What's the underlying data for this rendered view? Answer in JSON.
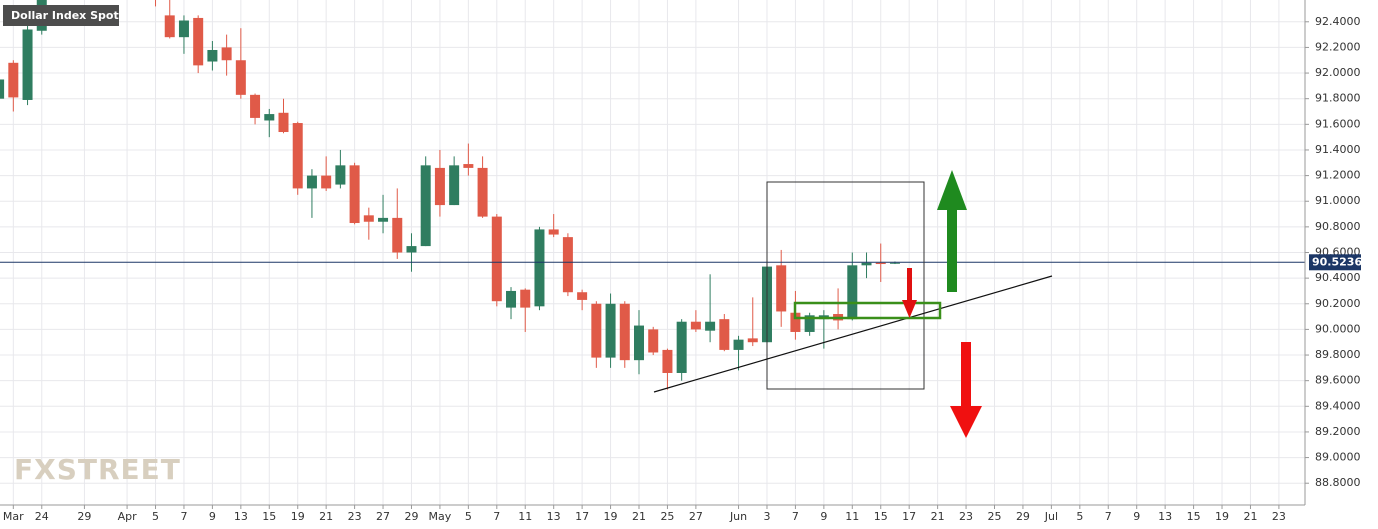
{
  "chart_data": {
    "type": "candlestick",
    "title": "Dollar Index Spot",
    "watermark": "FXSTREET",
    "categories": [
      null,
      "Mar",
      null,
      "24",
      null,
      null,
      "29",
      null,
      null,
      "Apr",
      null,
      "5",
      null,
      "7",
      null,
      "9",
      null,
      "13",
      null,
      "15",
      null,
      "19",
      null,
      "21",
      null,
      "23",
      null,
      "27",
      null,
      "29",
      null,
      "May",
      null,
      "5",
      null,
      "7",
      null,
      "11",
      null,
      "13",
      null,
      "17",
      null,
      "19",
      null,
      "21",
      null,
      "25",
      null,
      "27",
      null,
      null,
      "Jun",
      null,
      "3",
      null,
      "7",
      null,
      "9",
      null,
      "11",
      null,
      "15",
      null,
      "17",
      null,
      "21",
      null,
      "23",
      null,
      "25",
      null,
      "29",
      null,
      "Jul",
      null,
      "5",
      null,
      "7",
      null,
      "9",
      null,
      "13",
      null,
      "15",
      null,
      "19",
      null,
      "21",
      null,
      "23"
    ],
    "open": [
      91.8,
      92.08,
      91.79,
      92.33,
      null,
      null,
      null,
      null,
      null,
      null,
      null,
      92.8,
      92.45,
      92.28,
      92.43,
      92.09,
      92.2,
      92.1,
      91.83,
      91.63,
      91.69,
      91.61,
      91.1,
      91.2,
      91.13,
      91.28,
      90.89,
      90.84,
      90.87,
      90.6,
      90.65,
      91.26,
      90.97,
      91.29,
      91.26,
      90.88,
      90.17,
      90.31,
      90.18,
      90.78,
      90.72,
      90.29,
      90.2,
      89.78,
      90.2,
      89.76,
      90.0,
      89.84,
      89.66,
      90.06,
      89.99,
      90.08,
      89.84,
      89.93,
      89.9,
      90.5,
      90.13,
      89.98,
      90.08,
      90.12,
      90.08,
      90.5,
      90.52,
      90.52,
      null,
      null,
      null,
      null,
      null,
      null,
      null,
      null,
      null,
      null,
      null,
      null,
      null,
      null,
      null,
      null,
      null,
      null,
      null,
      null,
      null,
      null,
      null,
      null,
      null,
      null,
      null
    ],
    "high": [
      92.05,
      92.1,
      92.5,
      92.6,
      null,
      null,
      null,
      null,
      null,
      null,
      null,
      92.9,
      92.57,
      92.45,
      92.45,
      92.25,
      92.3,
      92.35,
      91.84,
      91.72,
      91.8,
      91.62,
      91.25,
      91.35,
      91.4,
      91.3,
      90.95,
      91.05,
      91.1,
      90.75,
      91.35,
      91.4,
      91.35,
      91.45,
      91.35,
      90.9,
      90.33,
      90.32,
      90.8,
      90.9,
      90.75,
      90.31,
      90.22,
      90.28,
      90.22,
      90.15,
      90.02,
      89.85,
      90.08,
      90.15,
      90.43,
      90.12,
      89.95,
      90.25,
      90.53,
      90.62,
      90.3,
      90.13,
      90.15,
      90.32,
      90.6,
      90.6,
      90.67,
      90.53,
      null,
      null,
      null,
      null,
      null,
      null,
      null,
      null,
      null,
      null,
      null,
      null,
      null,
      null,
      null,
      null,
      null,
      null,
      null,
      null,
      null,
      null,
      null,
      null,
      null,
      null,
      null
    ],
    "low": [
      91.65,
      91.7,
      91.75,
      92.3,
      null,
      null,
      null,
      null,
      null,
      null,
      null,
      92.52,
      92.27,
      92.15,
      92.0,
      92.02,
      91.98,
      91.8,
      91.6,
      91.5,
      91.53,
      91.05,
      90.87,
      91.08,
      91.1,
      90.82,
      90.7,
      90.75,
      90.55,
      90.45,
      90.65,
      90.88,
      90.97,
      91.2,
      90.87,
      90.18,
      90.08,
      89.98,
      90.15,
      90.72,
      90.26,
      90.15,
      89.7,
      89.7,
      89.7,
      89.65,
      89.8,
      89.53,
      89.6,
      89.98,
      89.9,
      89.83,
      89.68,
      89.87,
      89.88,
      90.02,
      89.92,
      89.95,
      89.85,
      90.0,
      90.07,
      90.4,
      90.37,
      90.51,
      null,
      null,
      null,
      null,
      null,
      null,
      null,
      null,
      null,
      null,
      null,
      null,
      null,
      null,
      null,
      null,
      null,
      null,
      null,
      null,
      null,
      null,
      null,
      null,
      null,
      null,
      null
    ],
    "close": [
      91.95,
      91.81,
      92.34,
      92.57,
      null,
      null,
      null,
      null,
      null,
      null,
      null,
      92.62,
      92.28,
      92.41,
      92.06,
      92.18,
      92.1,
      91.83,
      91.65,
      91.68,
      91.54,
      91.1,
      91.2,
      91.1,
      91.28,
      90.83,
      90.84,
      90.87,
      90.6,
      90.65,
      91.28,
      90.97,
      91.28,
      91.26,
      90.88,
      90.22,
      90.3,
      90.17,
      90.78,
      90.74,
      90.29,
      90.23,
      89.78,
      90.2,
      89.76,
      90.03,
      89.82,
      89.66,
      90.06,
      90.0,
      90.06,
      89.84,
      89.92,
      89.9,
      90.49,
      90.14,
      89.98,
      90.11,
      90.11,
      90.07,
      90.5,
      90.52,
      90.51,
      90.52,
      null,
      null,
      null,
      null,
      null,
      null,
      null,
      null,
      null,
      null,
      null,
      null,
      null,
      null,
      null,
      null,
      null,
      null,
      null,
      null,
      null,
      null,
      null,
      null,
      null,
      null,
      null
    ],
    "up_color": "#2f7d60",
    "down_color": "#e05a48",
    "last_price": 90.5236,
    "ylim": [
      88.63,
      92.57
    ],
    "yticks": [
      {
        "value": 88.8,
        "label": "88.8000"
      },
      {
        "value": 89.0,
        "label": "89.0000"
      },
      {
        "value": 89.2,
        "label": "89.2000"
      },
      {
        "value": 89.4,
        "label": "89.4000"
      },
      {
        "value": 89.6,
        "label": "89.6000"
      },
      {
        "value": 89.8,
        "label": "89.8000"
      },
      {
        "value": 90.0,
        "label": "90.0000"
      },
      {
        "value": 90.2,
        "label": "90.2000"
      },
      {
        "value": 90.4,
        "label": "90.4000"
      },
      {
        "value": 90.6,
        "label": "90.6000"
      },
      {
        "value": 90.8,
        "label": "90.8000"
      },
      {
        "value": 91.0,
        "label": "91.0000"
      },
      {
        "value": 91.2,
        "label": "91.2000"
      },
      {
        "value": 91.4,
        "label": "91.4000"
      },
      {
        "value": 91.6,
        "label": "91.6000"
      },
      {
        "value": 91.8,
        "label": "91.8000"
      },
      {
        "value": 92.0,
        "label": "92.0000"
      },
      {
        "value": 92.2,
        "label": "92.2000"
      },
      {
        "value": 92.4,
        "label": "92.4000"
      }
    ],
    "grid": true
  }
}
